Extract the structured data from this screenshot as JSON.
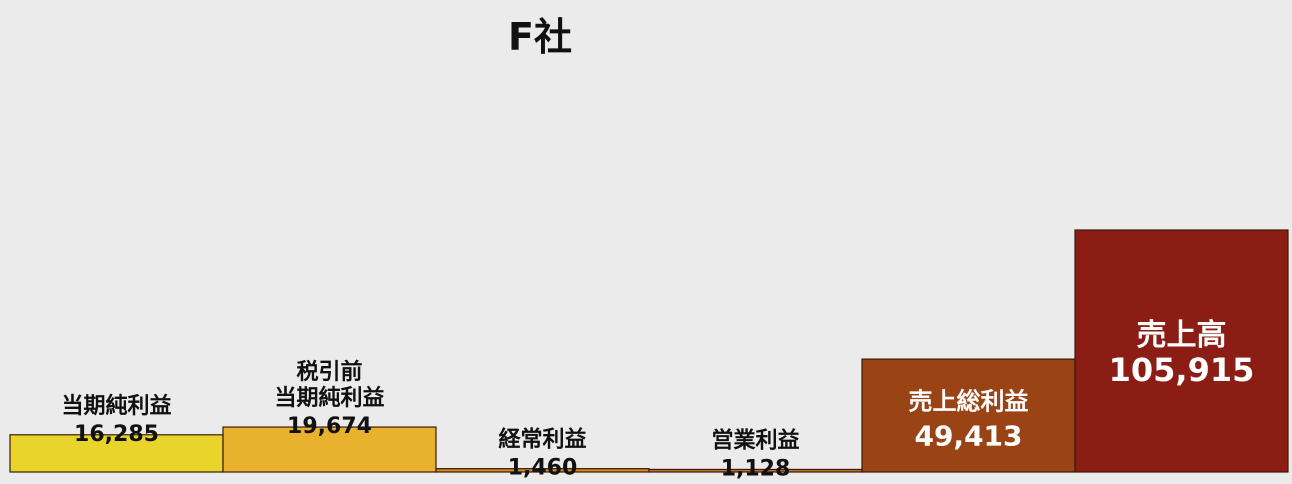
{
  "chart_data": {
    "type": "bar",
    "title": "F社",
    "xlabel": "",
    "ylabel": "",
    "ylim": [
      0,
      105915
    ],
    "grid": false,
    "legend": "none",
    "categories": [
      [
        "当期純利益"
      ],
      [
        "税引前",
        "当期純利益"
      ],
      [
        "経常利益"
      ],
      [
        "営業利益"
      ],
      [
        "売上総利益"
      ],
      [
        "売上高"
      ]
    ],
    "values": [
      16285,
      19674,
      1460,
      1128,
      49413,
      105915
    ],
    "value_labels": [
      "16,285",
      "19,674",
      "1,460",
      "1,128",
      "49,413",
      "105,915"
    ],
    "label_position": [
      "above",
      "above",
      "above",
      "above",
      "inside",
      "inside"
    ],
    "colors": [
      "#e8d42a",
      "#e8b22e",
      "#d38a1f",
      "#c0712a",
      "#9a4415",
      "#8b1d14"
    ],
    "label_colors": [
      "#111111",
      "#111111",
      "#111111",
      "#111111",
      "#ffffff",
      "#ffffff"
    ]
  }
}
